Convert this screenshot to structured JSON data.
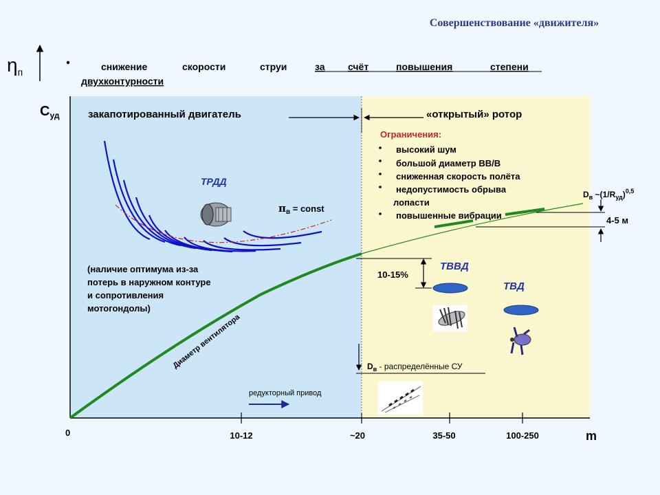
{
  "title": "Совершенствование «движителя»",
  "eta_label": "η",
  "eta_sub": "п",
  "bullet": {
    "line1_words": [
      "снижение",
      "скорости",
      "струи",
      "за",
      "счёт",
      "повышения",
      "степени"
    ],
    "line2": "двухконтурности"
  },
  "axes": {
    "y_label": "С",
    "y_sub": "уд",
    "x_label": "m",
    "origin": "0",
    "x_ticks": [
      "10-12",
      "~20",
      "35-50",
      "100-250"
    ]
  },
  "regions": {
    "left_label": "закапотированный двигатель",
    "right_label": "«открытый» ротор"
  },
  "limits": {
    "header": "Ограничения:",
    "items": [
      "высокий шум",
      "большой диаметр ВВ/В",
      "сниженная скорость полёта",
      "недопустимость обрыва",
      "лопасти",
      "повышенные вибрации"
    ]
  },
  "trdd": "ТРДД",
  "pi_label": "π",
  "pi_sub": "в",
  "pi_rest": " = const",
  "optimum_note": [
    "(наличие оптимума из-за",
    "потерь в наружном контуре",
    "и сопротивления",
    "мотогондолы)"
  ],
  "fan_diameter": "Диаметр вентилятора",
  "reducer": "редукторный привод",
  "dv_formula": {
    "main": "D",
    "sub1": "в",
    "mid": " ~(1/R",
    "sub2": "уд",
    "end": ")",
    "sup": "0,5"
  },
  "gap_4_5": "4-5 м",
  "gap_10_15": "10-15%",
  "tvvd": "ТВВД",
  "tvd": "ТВД",
  "distributed": {
    "main": "D",
    "sub": "в",
    "rest": " - распределённые СУ"
  },
  "colors": {
    "left_region": "#cce6f7",
    "right_region": "#fbf7cf",
    "green_curve": "#1f8a1f",
    "blue_curves": "#1010cc",
    "envelope": "#cc2222",
    "ellipse": "#2f63c4"
  }
}
